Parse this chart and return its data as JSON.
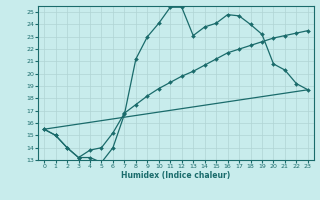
{
  "xlabel": "Humidex (Indice chaleur)",
  "bg_color": "#c8ecec",
  "line_color": "#1a6b6b",
  "grid_color": "#b0d4d4",
  "xlim": [
    -0.5,
    23.5
  ],
  "ylim": [
    13,
    25.5
  ],
  "xticks": [
    0,
    1,
    2,
    3,
    4,
    5,
    6,
    7,
    8,
    9,
    10,
    11,
    12,
    13,
    14,
    15,
    16,
    17,
    18,
    19,
    20,
    21,
    22,
    23
  ],
  "yticks": [
    13,
    14,
    15,
    16,
    17,
    18,
    19,
    20,
    21,
    22,
    23,
    24,
    25
  ],
  "line1_x": [
    0,
    1,
    2,
    3,
    4,
    5,
    6,
    7,
    8,
    9,
    10,
    11,
    12,
    13,
    14,
    15,
    16,
    17,
    18,
    19,
    20,
    21,
    22,
    23
  ],
  "line1_y": [
    15.5,
    15.0,
    14.0,
    13.2,
    13.2,
    12.8,
    14.0,
    16.7,
    21.2,
    23.0,
    24.1,
    25.4,
    25.4,
    23.1,
    23.8,
    24.1,
    24.8,
    24.7,
    24.0,
    23.2,
    20.8,
    20.3,
    19.2,
    18.7
  ],
  "line2_x": [
    0,
    1,
    2,
    3,
    4,
    5,
    6,
    7,
    8,
    9,
    10,
    11,
    12,
    13,
    14,
    15,
    16,
    17,
    18,
    19,
    20,
    21,
    22,
    23
  ],
  "line2_y": [
    15.5,
    15.0,
    14.0,
    13.2,
    13.8,
    14.0,
    15.2,
    16.8,
    17.5,
    18.2,
    18.8,
    19.3,
    19.8,
    20.2,
    20.7,
    21.2,
    21.7,
    22.0,
    22.3,
    22.6,
    22.9,
    23.1,
    23.3,
    23.5
  ],
  "line3_x": [
    0,
    23
  ],
  "line3_y": [
    15.5,
    18.7
  ]
}
